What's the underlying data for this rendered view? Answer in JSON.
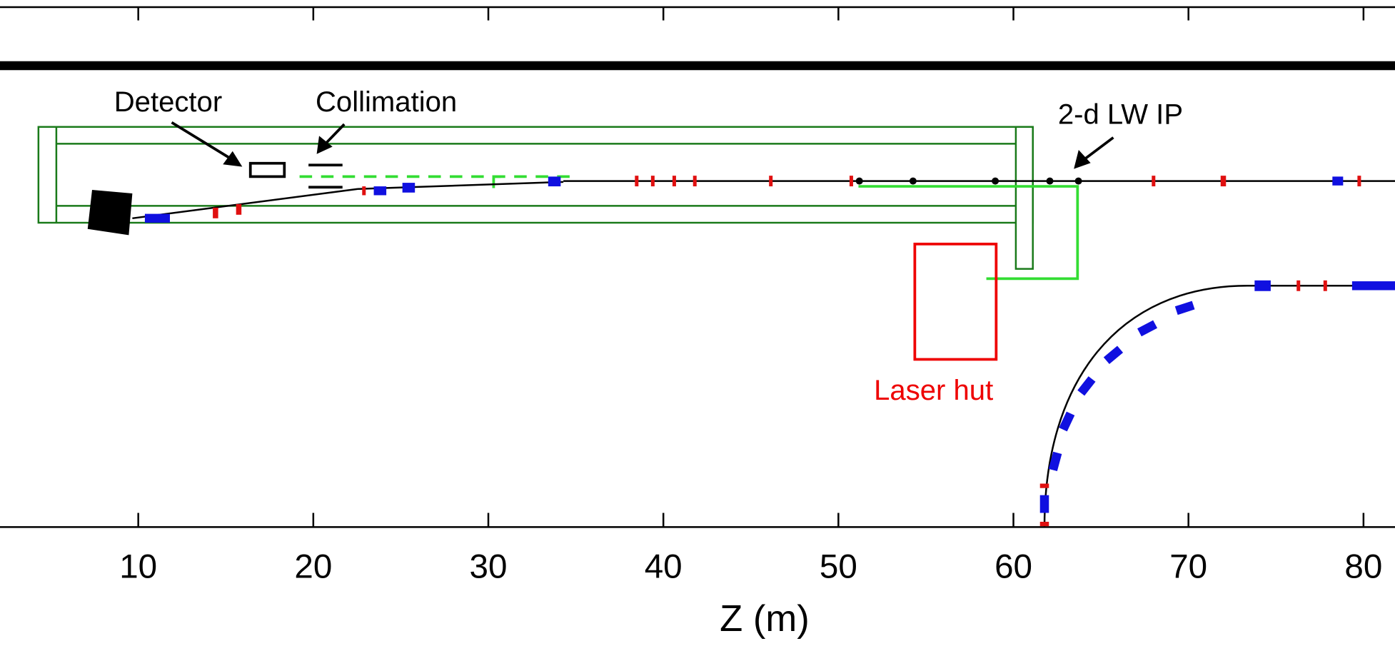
{
  "axis": {
    "label": "Z (m)",
    "xlim": [
      2.1,
      81.8
    ],
    "ticks": [
      10,
      20,
      30,
      40,
      50,
      60,
      70,
      80
    ]
  },
  "annotations": {
    "detector": "Detector",
    "collimation": "Collimation",
    "ip": "2-d LW IP",
    "laser_hut": "Laser hut"
  }
}
